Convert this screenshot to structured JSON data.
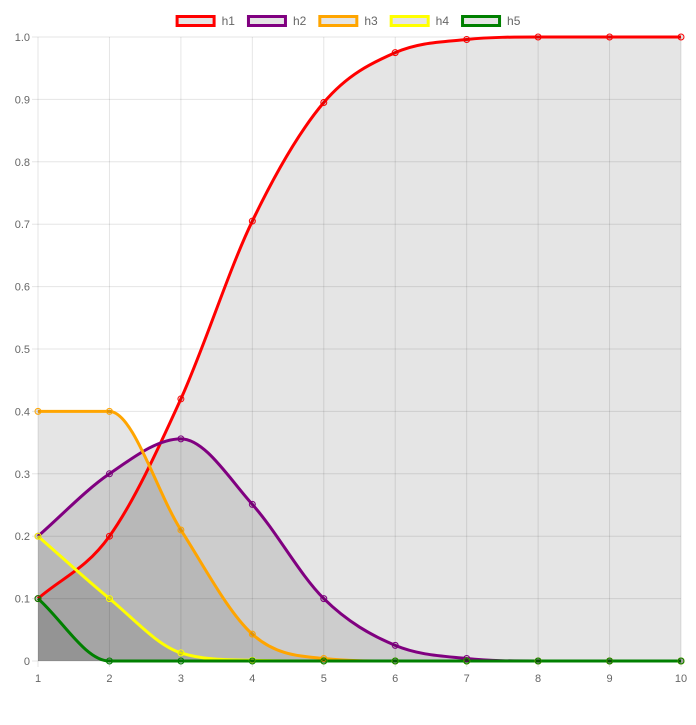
{
  "chart_data": {
    "type": "line",
    "x": [
      1,
      2,
      3,
      4,
      5,
      6,
      7,
      8,
      9,
      10
    ],
    "xlim": [
      1,
      10
    ],
    "ylim": [
      0,
      1
    ],
    "y_ticks": [
      "0",
      "0.1",
      "0.2",
      "0.3",
      "0.4",
      "0.5",
      "0.6",
      "0.7",
      "0.8",
      "0.9",
      "1.0"
    ],
    "x_ticks": [
      "1",
      "2",
      "3",
      "4",
      "5",
      "6",
      "7",
      "8",
      "9",
      "10"
    ],
    "grid": true,
    "filled": true,
    "smooth": true,
    "legend_position": "top",
    "fill_color": "#000000",
    "series": [
      {
        "name": "h1",
        "color": "#ff0000",
        "values": [
          0.1,
          0.2,
          0.42,
          0.705,
          0.895,
          0.975,
          0.996,
          1.0,
          1.0,
          1.0
        ]
      },
      {
        "name": "h2",
        "color": "#800080",
        "values": [
          0.2,
          0.3,
          0.356,
          0.251,
          0.1,
          0.025,
          0.004,
          0.0,
          0.0,
          0.0
        ]
      },
      {
        "name": "h3",
        "color": "#ffa500",
        "values": [
          0.4,
          0.4,
          0.21,
          0.043,
          0.004,
          0.0,
          0.0,
          0.0,
          0.0,
          0.0
        ]
      },
      {
        "name": "h4",
        "color": "#ffff00",
        "values": [
          0.2,
          0.1,
          0.013,
          0.001,
          0.0,
          0.0,
          0.0,
          0.0,
          0.0,
          0.0
        ]
      },
      {
        "name": "h5",
        "color": "#008000",
        "values": [
          0.1,
          0.0,
          0.0,
          0.0,
          0.0,
          0.0,
          0.0,
          0.0,
          0.0,
          0.0
        ]
      }
    ]
  }
}
